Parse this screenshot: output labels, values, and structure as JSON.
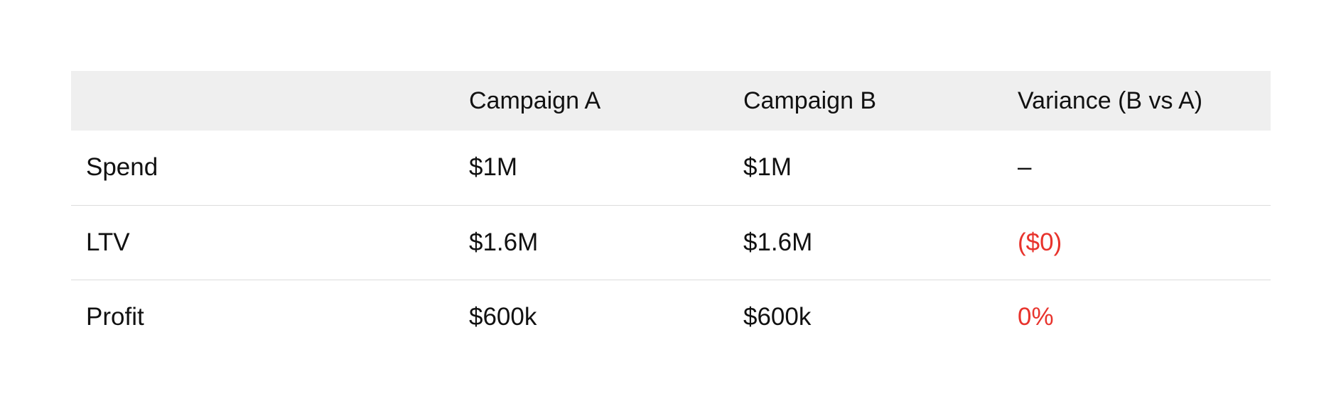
{
  "table": {
    "headers": [
      "",
      "Campaign A",
      "Campaign B",
      "Variance (B vs A)"
    ],
    "rows": [
      {
        "label": "Spend",
        "a": "$1M",
        "b": "$1M",
        "variance": "–",
        "variance_highlight": false
      },
      {
        "label": "LTV",
        "a": "$1.6M",
        "b": "$1.6M",
        "variance": "($0)",
        "variance_highlight": true
      },
      {
        "label": "Profit",
        "a": "$600k",
        "b": "$600k",
        "variance": "0%",
        "variance_highlight": true
      }
    ]
  },
  "colors": {
    "header_background": "#efefef",
    "negative_text": "#e8332c",
    "row_divider": "#dcdcdc"
  }
}
